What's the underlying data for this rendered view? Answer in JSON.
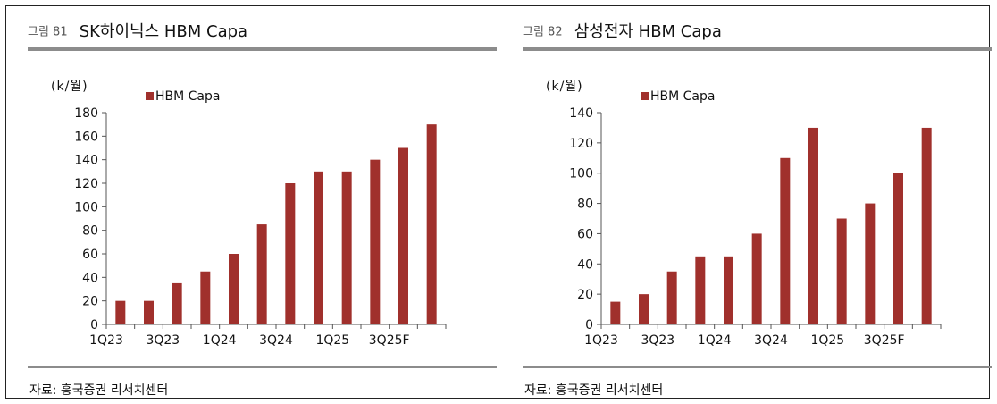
{
  "colors": {
    "bar": "#a0302c",
    "axis": "#555555",
    "rule": "#8c8c8c"
  },
  "panels": [
    {
      "figure_label": "그림 81",
      "title": "SK하이닉스 HBM Capa",
      "source": "자료: 흥국증권 리서치센터"
    },
    {
      "figure_label": "그림 82",
      "title": "삼성전자 HBM Capa",
      "source": "자료: 흥국증권 리서치센터"
    }
  ],
  "chart_data": [
    {
      "type": "bar",
      "title": "SK하이닉스 HBM Capa",
      "ylabel": "(k/월)",
      "xlabel": "",
      "categories": [
        "1Q23",
        "2Q23",
        "3Q23",
        "4Q23",
        "1Q24",
        "2Q24",
        "3Q24",
        "4Q24",
        "1Q25",
        "2Q25",
        "3Q25F",
        "4Q25F"
      ],
      "tick_labels": [
        "1Q23",
        "",
        "3Q23",
        "",
        "1Q24",
        "",
        "3Q24",
        "",
        "1Q25",
        "",
        "3Q25F",
        ""
      ],
      "series": [
        {
          "name": "HBM Capa",
          "values": [
            20,
            20,
            35,
            45,
            60,
            85,
            120,
            130,
            130,
            140,
            150,
            170
          ]
        }
      ],
      "ylim": [
        0,
        180
      ],
      "yticks": [
        0,
        20,
        40,
        60,
        80,
        100,
        120,
        140,
        160,
        180
      ],
      "grid": false,
      "legend": "top-left"
    },
    {
      "type": "bar",
      "title": "삼성전자 HBM Capa",
      "ylabel": "(k/월)",
      "xlabel": "",
      "categories": [
        "1Q23",
        "2Q23",
        "3Q23",
        "4Q23",
        "1Q24",
        "2Q24",
        "3Q24",
        "4Q24",
        "1Q25",
        "2Q25",
        "3Q25F",
        "4Q25F"
      ],
      "tick_labels": [
        "1Q23",
        "",
        "3Q23",
        "",
        "1Q24",
        "",
        "3Q24",
        "",
        "1Q25",
        "",
        "3Q25F",
        ""
      ],
      "series": [
        {
          "name": "HBM Capa",
          "values": [
            15,
            20,
            35,
            45,
            45,
            60,
            110,
            130,
            70,
            80,
            100,
            130
          ]
        }
      ],
      "ylim": [
        0,
        140
      ],
      "yticks": [
        0,
        20,
        40,
        60,
        80,
        100,
        120,
        140
      ],
      "grid": false,
      "legend": "top-left"
    }
  ]
}
